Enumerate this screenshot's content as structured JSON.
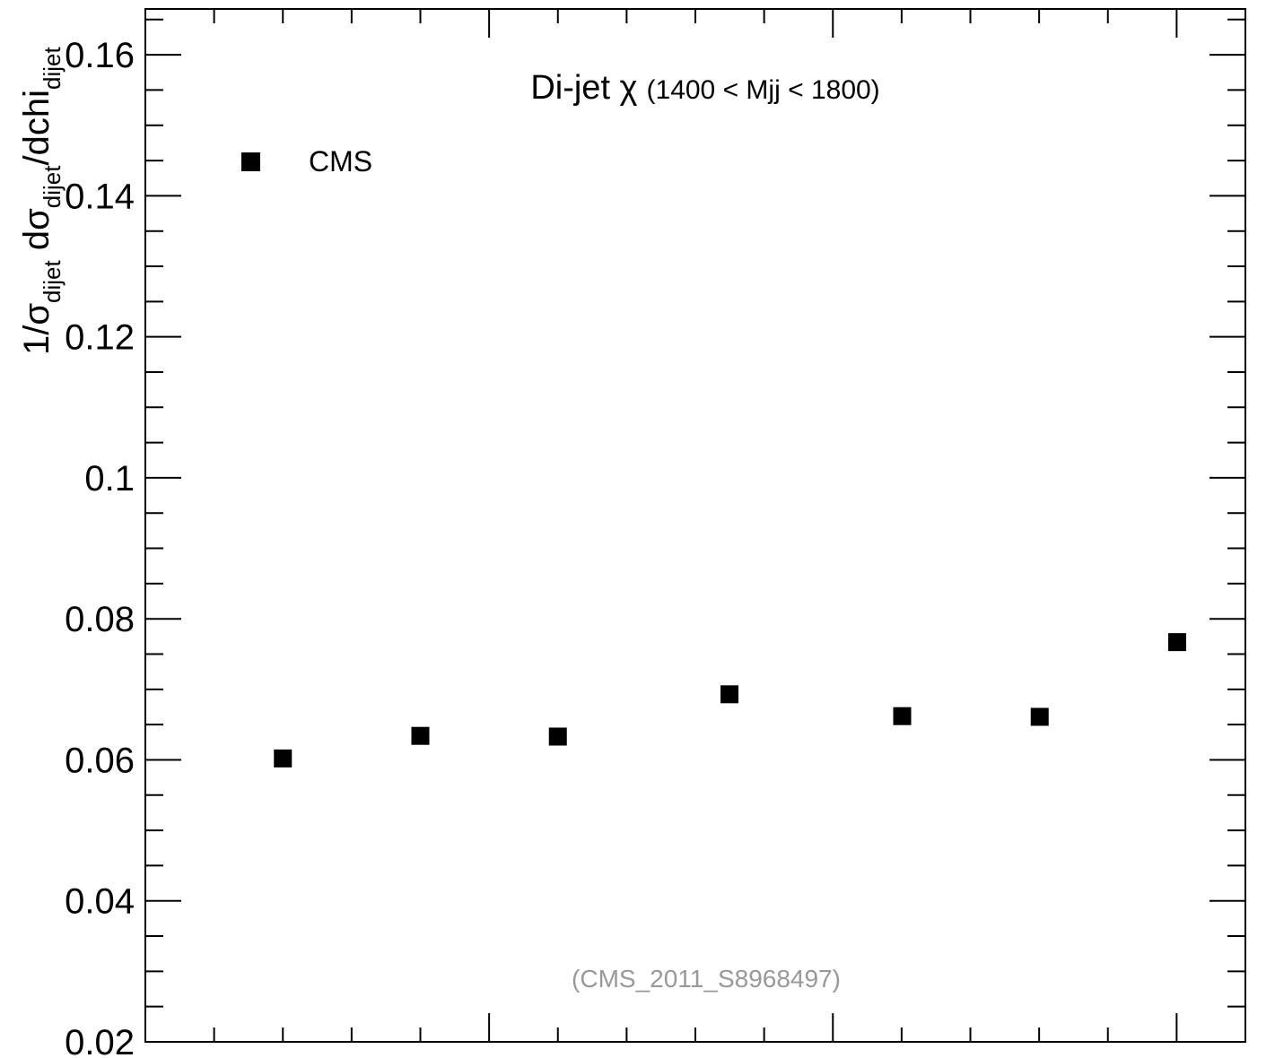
{
  "chart_data": {
    "type": "scatter",
    "title": "Di-jet χ",
    "title_suffix": "(1400 < Mjj < 1800)",
    "ylabel": {
      "parts": [
        "1/σ",
        "dijet",
        " dσ",
        "dijet",
        "/dchi",
        "dijet"
      ]
    },
    "xlabel": "",
    "ylim": [
      0.02,
      0.1665
    ],
    "xlim": [
      0,
      1
    ],
    "y_ticks": [
      "0.02",
      "0.04",
      "0.06",
      "0.08",
      "0.1",
      "0.12",
      "0.14",
      "0.16"
    ],
    "y_tick_values": [
      0.02,
      0.04,
      0.06,
      0.08,
      0.1,
      0.12,
      0.14,
      0.16
    ],
    "grid": false,
    "legend_position": "top-left",
    "series": [
      {
        "name": "CMS",
        "marker": "square",
        "color": "#000000",
        "x": [
          0.125,
          0.25,
          0.375,
          0.531,
          0.688,
          0.813,
          0.938
        ],
        "y": [
          0.0602,
          0.0634,
          0.0633,
          0.0693,
          0.0662,
          0.0661,
          0.0767
        ]
      }
    ],
    "annotation": "(CMS_2011_S8968497)",
    "annotation_color": "#999999"
  }
}
